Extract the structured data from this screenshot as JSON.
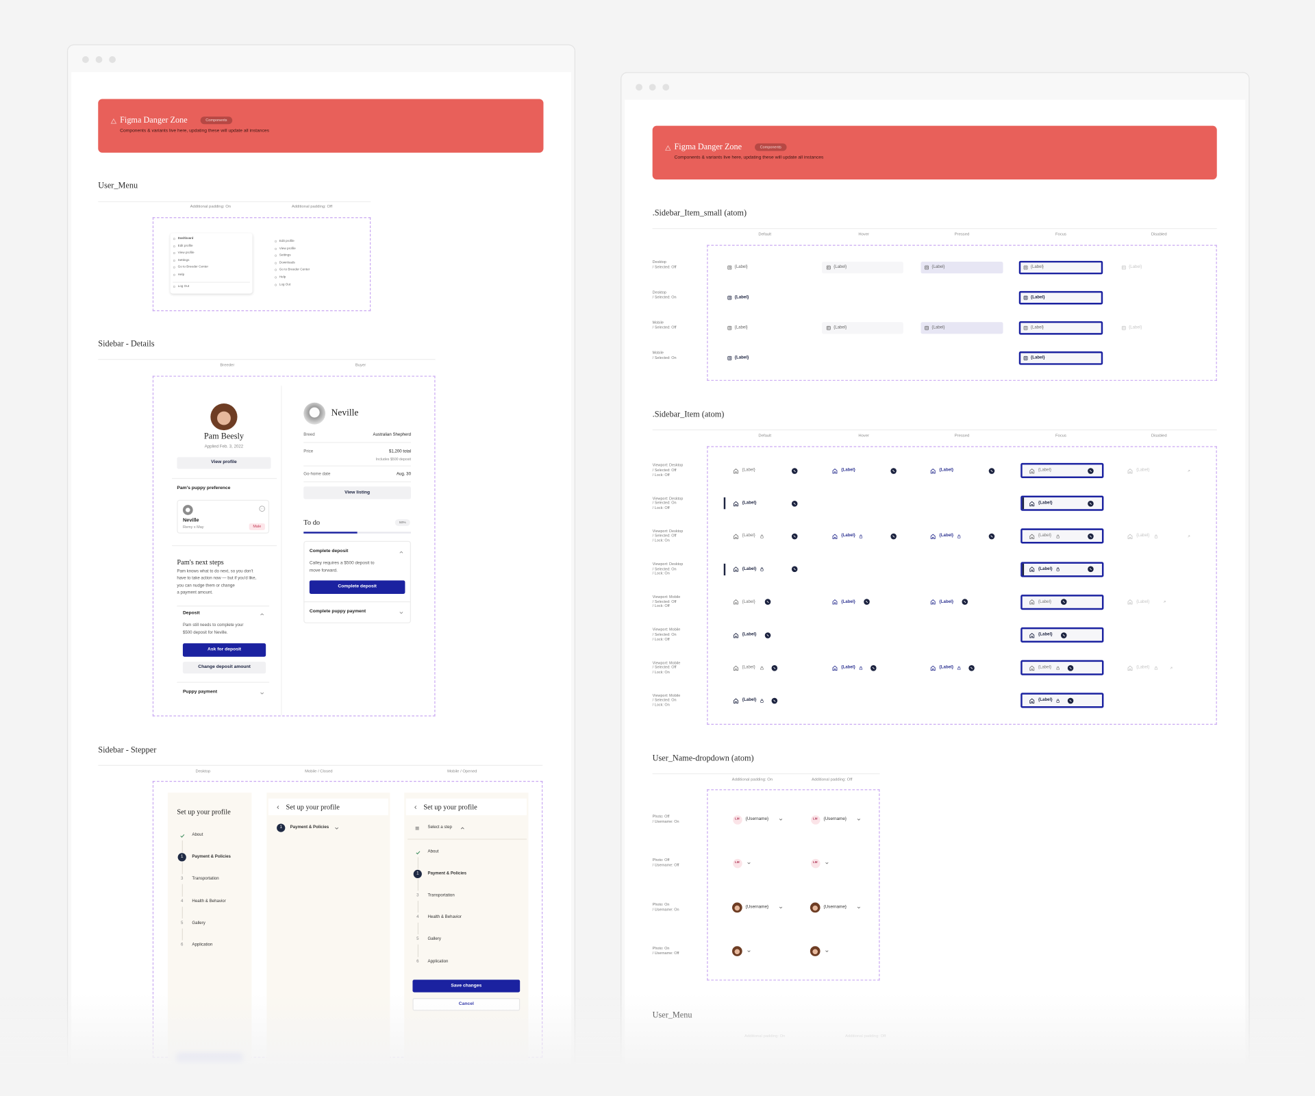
{
  "banner": {
    "title": "Figma Danger Zone",
    "badge": "Components",
    "subtitle": "Components & variants live here, updating these will update all instances"
  },
  "user_menu": {
    "title": "User_Menu",
    "columns": [
      "Additional padding: On",
      "Additional padding: Off"
    ],
    "menus": [
      [
        "Dashboard",
        "Edit profile",
        "View profile",
        "Settings",
        "Go to Breeder Center",
        "Help",
        "Log Out"
      ],
      [
        "Edit profile",
        "View profile",
        "Settings",
        "Downloads",
        "Go to Breeder Center",
        "Help",
        "Log Out"
      ]
    ]
  },
  "sidebar_details": {
    "title": "Sidebar - Details",
    "columns": [
      "Breeder",
      "Buyer"
    ],
    "breeder": {
      "name": "Pam Beesly",
      "applied": "Applied Feb. 3, 2022",
      "profile_button": "View profile",
      "preference_title": "Pam's puppy preference",
      "puppy": {
        "name": "Neville",
        "parents": "Remy x May",
        "sex": "Male"
      },
      "next_steps_title": "Pam's next steps",
      "next_steps_text": [
        "Pam knows what to do next, so you don't",
        "have to take action now — but if you'd like,",
        "you can nudge them or change",
        "a payment amount."
      ],
      "deposit": {
        "title": "Deposit",
        "text": [
          "Pam still needs to complete your",
          "$500 deposit for Neville."
        ],
        "primary_button": "Ask for deposit",
        "secondary_button": "Change deposit amount"
      },
      "payment_title": "Puppy payment"
    },
    "buyer": {
      "name": "Neville",
      "rows": [
        {
          "label": "Breed",
          "value": "Australian Shepherd"
        },
        {
          "label": "Price",
          "value": "$1,200 total",
          "note": "Includes $500 deposit"
        },
        {
          "label": "Go-home date",
          "value": "Aug. 30"
        }
      ],
      "listing_button": "View listing",
      "todo_title": "To do",
      "todo_progress": "50%",
      "deposit": {
        "title": "Complete deposit",
        "text": [
          "Calley requires a $500 deposit to",
          "move forward."
        ],
        "button": "Complete deposit"
      },
      "payment_title": "Complete puppy payment"
    }
  },
  "sidebar_stepper": {
    "title": "Sidebar - Stepper",
    "columns": [
      "Desktop",
      "Mobile / Closed",
      "Mobile / Opened"
    ],
    "heading": "Set up your profile",
    "select_label": "Select a step",
    "steps": [
      {
        "name": "About"
      },
      {
        "number": 1,
        "name": "Payment & Policies"
      },
      {
        "number": 3,
        "name": "Transportation"
      },
      {
        "number": 4,
        "name": "Health & Behavior"
      },
      {
        "number": 5,
        "name": "Gallery"
      },
      {
        "number": 6,
        "name": "Application"
      }
    ],
    "save_button": "Save changes",
    "cancel_button": "Cancel"
  },
  "sidebar_item_small": {
    "title": ".Sidebar_Item_small (atom)",
    "columns": [
      "Default",
      "Hover",
      "Pressed",
      "Focus",
      "Disabled"
    ],
    "item_label": "{Label}",
    "rows": [
      [
        "Desktop",
        "/ Selected: Off"
      ],
      [
        "Desktop",
        "/ Selected: On"
      ],
      [
        "Mobile",
        "/ Selected: Off"
      ],
      [
        "Mobile",
        "/ Selected: On"
      ]
    ]
  },
  "sidebar_item": {
    "title": ".Sidebar_Item (atom)",
    "columns": [
      "Default",
      "Hover",
      "Pressed",
      "Focus",
      "Disabled"
    ],
    "item_label": "{Label}",
    "rows": [
      [
        "Viewport: Desktop",
        "/ Selected: Off",
        "/ Lock: Off"
      ],
      [
        "Viewport: Desktop",
        "/ Selected: On",
        "/ Lock: Off"
      ],
      [
        "Viewport: Desktop",
        "/ Selected: Off",
        "/ Lock: On"
      ],
      [
        "Viewport: Desktop",
        "/ Selected: On",
        "/ Lock: On"
      ],
      [
        "Viewport: Mobile",
        "/ Selected: Off",
        "/ Lock: Off"
      ],
      [
        "Viewport: Mobile",
        "/ Selected: On",
        "/ Lock: Off"
      ],
      [
        "Viewport: Mobile",
        "/ Selected: Off",
        "/ Lock: On"
      ],
      [
        "Viewport: Mobile",
        "/ Selected: On",
        "/ Lock: On"
      ]
    ]
  },
  "user_name_dropdown": {
    "title": "User_Name-dropdown (atom)",
    "columns": [
      "Additional padding: On",
      "Additional padding: Off"
    ],
    "initials": "LM",
    "username_label": "{Username}",
    "rows": [
      [
        "Photo: Off",
        "/ Username: On"
      ],
      [
        "Photo: Off",
        "/ Username: Off"
      ],
      [
        "Photo: On",
        "/ Username: On"
      ],
      [
        "Photo: On",
        "/ Username: Off"
      ]
    ]
  }
}
